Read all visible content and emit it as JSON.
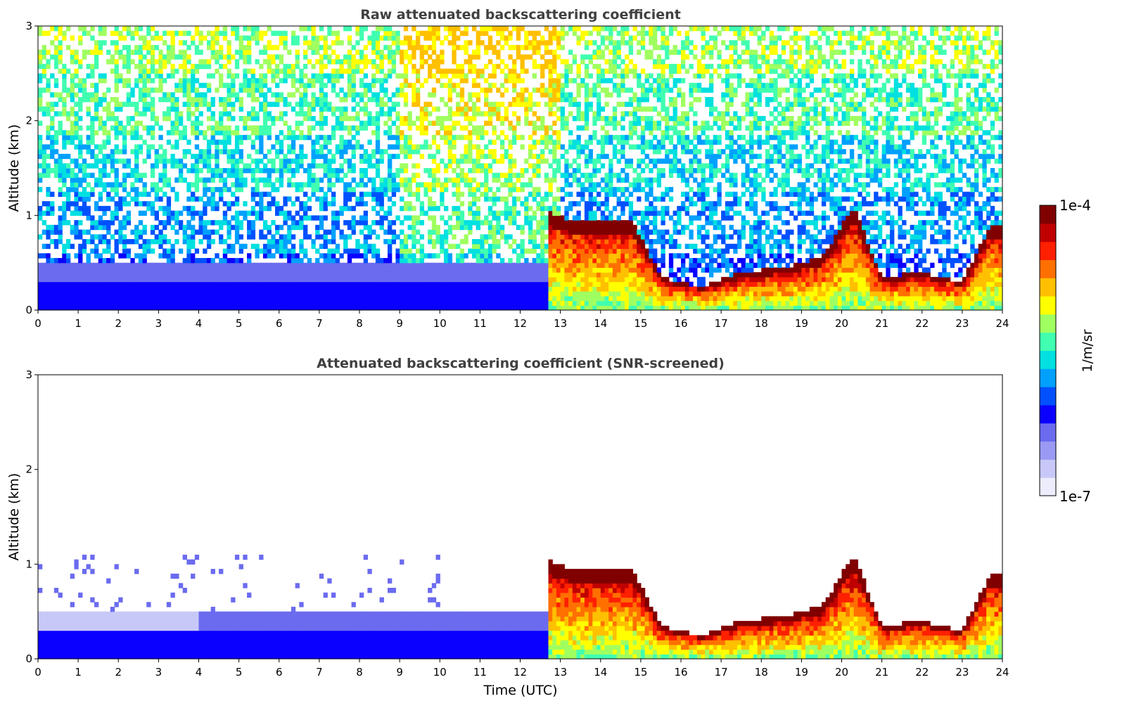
{
  "chart_data": [
    {
      "type": "heatmap",
      "title": "Raw attenuated backscattering coefficient",
      "xlabel": "",
      "ylabel": "Altitude (km)",
      "xlim": [
        0,
        24
      ],
      "ylim": [
        0,
        3
      ],
      "x_ticks": [
        "0",
        "1",
        "2",
        "3",
        "4",
        "5",
        "6",
        "7",
        "8",
        "9",
        "10",
        "11",
        "12",
        "13",
        "14",
        "15",
        "16",
        "17",
        "18",
        "19",
        "20",
        "21",
        "22",
        "23",
        "24"
      ],
      "y_ticks": [
        "0",
        "1",
        "2",
        "3"
      ],
      "color_scale": "log",
      "cloud_top_km": [
        {
          "t": 12.7,
          "h": 1.05
        },
        {
          "t": 13.3,
          "h": 0.95
        },
        {
          "t": 14.0,
          "h": 0.95
        },
        {
          "t": 14.8,
          "h": 0.95
        },
        {
          "t": 15.5,
          "h": 0.35
        },
        {
          "t": 16.5,
          "h": 0.25
        },
        {
          "t": 17.5,
          "h": 0.4
        },
        {
          "t": 18.5,
          "h": 0.45
        },
        {
          "t": 19.5,
          "h": 0.55
        },
        {
          "t": 20.3,
          "h": 1.1
        },
        {
          "t": 21.0,
          "h": 0.35
        },
        {
          "t": 22.0,
          "h": 0.4
        },
        {
          "t": 23.0,
          "h": 0.3
        },
        {
          "t": 23.7,
          "h": 0.9
        }
      ],
      "noise": true
    },
    {
      "type": "heatmap",
      "title": "Attenuated backscattering coefficient (SNR-screened)",
      "xlabel": "Time (UTC)",
      "ylabel": "Altitude (km)",
      "xlim": [
        0,
        24
      ],
      "ylim": [
        0,
        3
      ],
      "x_ticks": [
        "0",
        "1",
        "2",
        "3",
        "4",
        "5",
        "6",
        "7",
        "8",
        "9",
        "10",
        "11",
        "12",
        "13",
        "14",
        "15",
        "16",
        "17",
        "18",
        "19",
        "20",
        "21",
        "22",
        "23",
        "24"
      ],
      "y_ticks": [
        "0",
        "1",
        "2",
        "3"
      ],
      "color_scale": "log",
      "cloud_top_km": [
        {
          "t": 12.7,
          "h": 1.05
        },
        {
          "t": 13.3,
          "h": 0.95
        },
        {
          "t": 14.0,
          "h": 0.95
        },
        {
          "t": 14.8,
          "h": 0.95
        },
        {
          "t": 15.5,
          "h": 0.35
        },
        {
          "t": 16.5,
          "h": 0.25
        },
        {
          "t": 17.5,
          "h": 0.4
        },
        {
          "t": 18.5,
          "h": 0.45
        },
        {
          "t": 19.5,
          "h": 0.55
        },
        {
          "t": 20.3,
          "h": 1.1
        },
        {
          "t": 21.0,
          "h": 0.35
        },
        {
          "t": 22.0,
          "h": 0.4
        },
        {
          "t": 23.0,
          "h": 0.3
        },
        {
          "t": 23.7,
          "h": 0.9
        }
      ],
      "noise": false
    }
  ],
  "colorbar": {
    "label": "1/m/sr",
    "max_label": "1e-4",
    "min_label": "1e-7",
    "min_value": 1e-07,
    "max_value": 0.0001,
    "colormap": "jet",
    "colors": [
      "#ececfc",
      "#c8c8f8",
      "#9a9af4",
      "#6b6bf0",
      "#0a00ff",
      "#0050ff",
      "#00a0ff",
      "#00e0e0",
      "#40ffb0",
      "#a0ff60",
      "#ffff00",
      "#ffc000",
      "#ff7000",
      "#ff2000",
      "#c00000",
      "#800000"
    ]
  }
}
